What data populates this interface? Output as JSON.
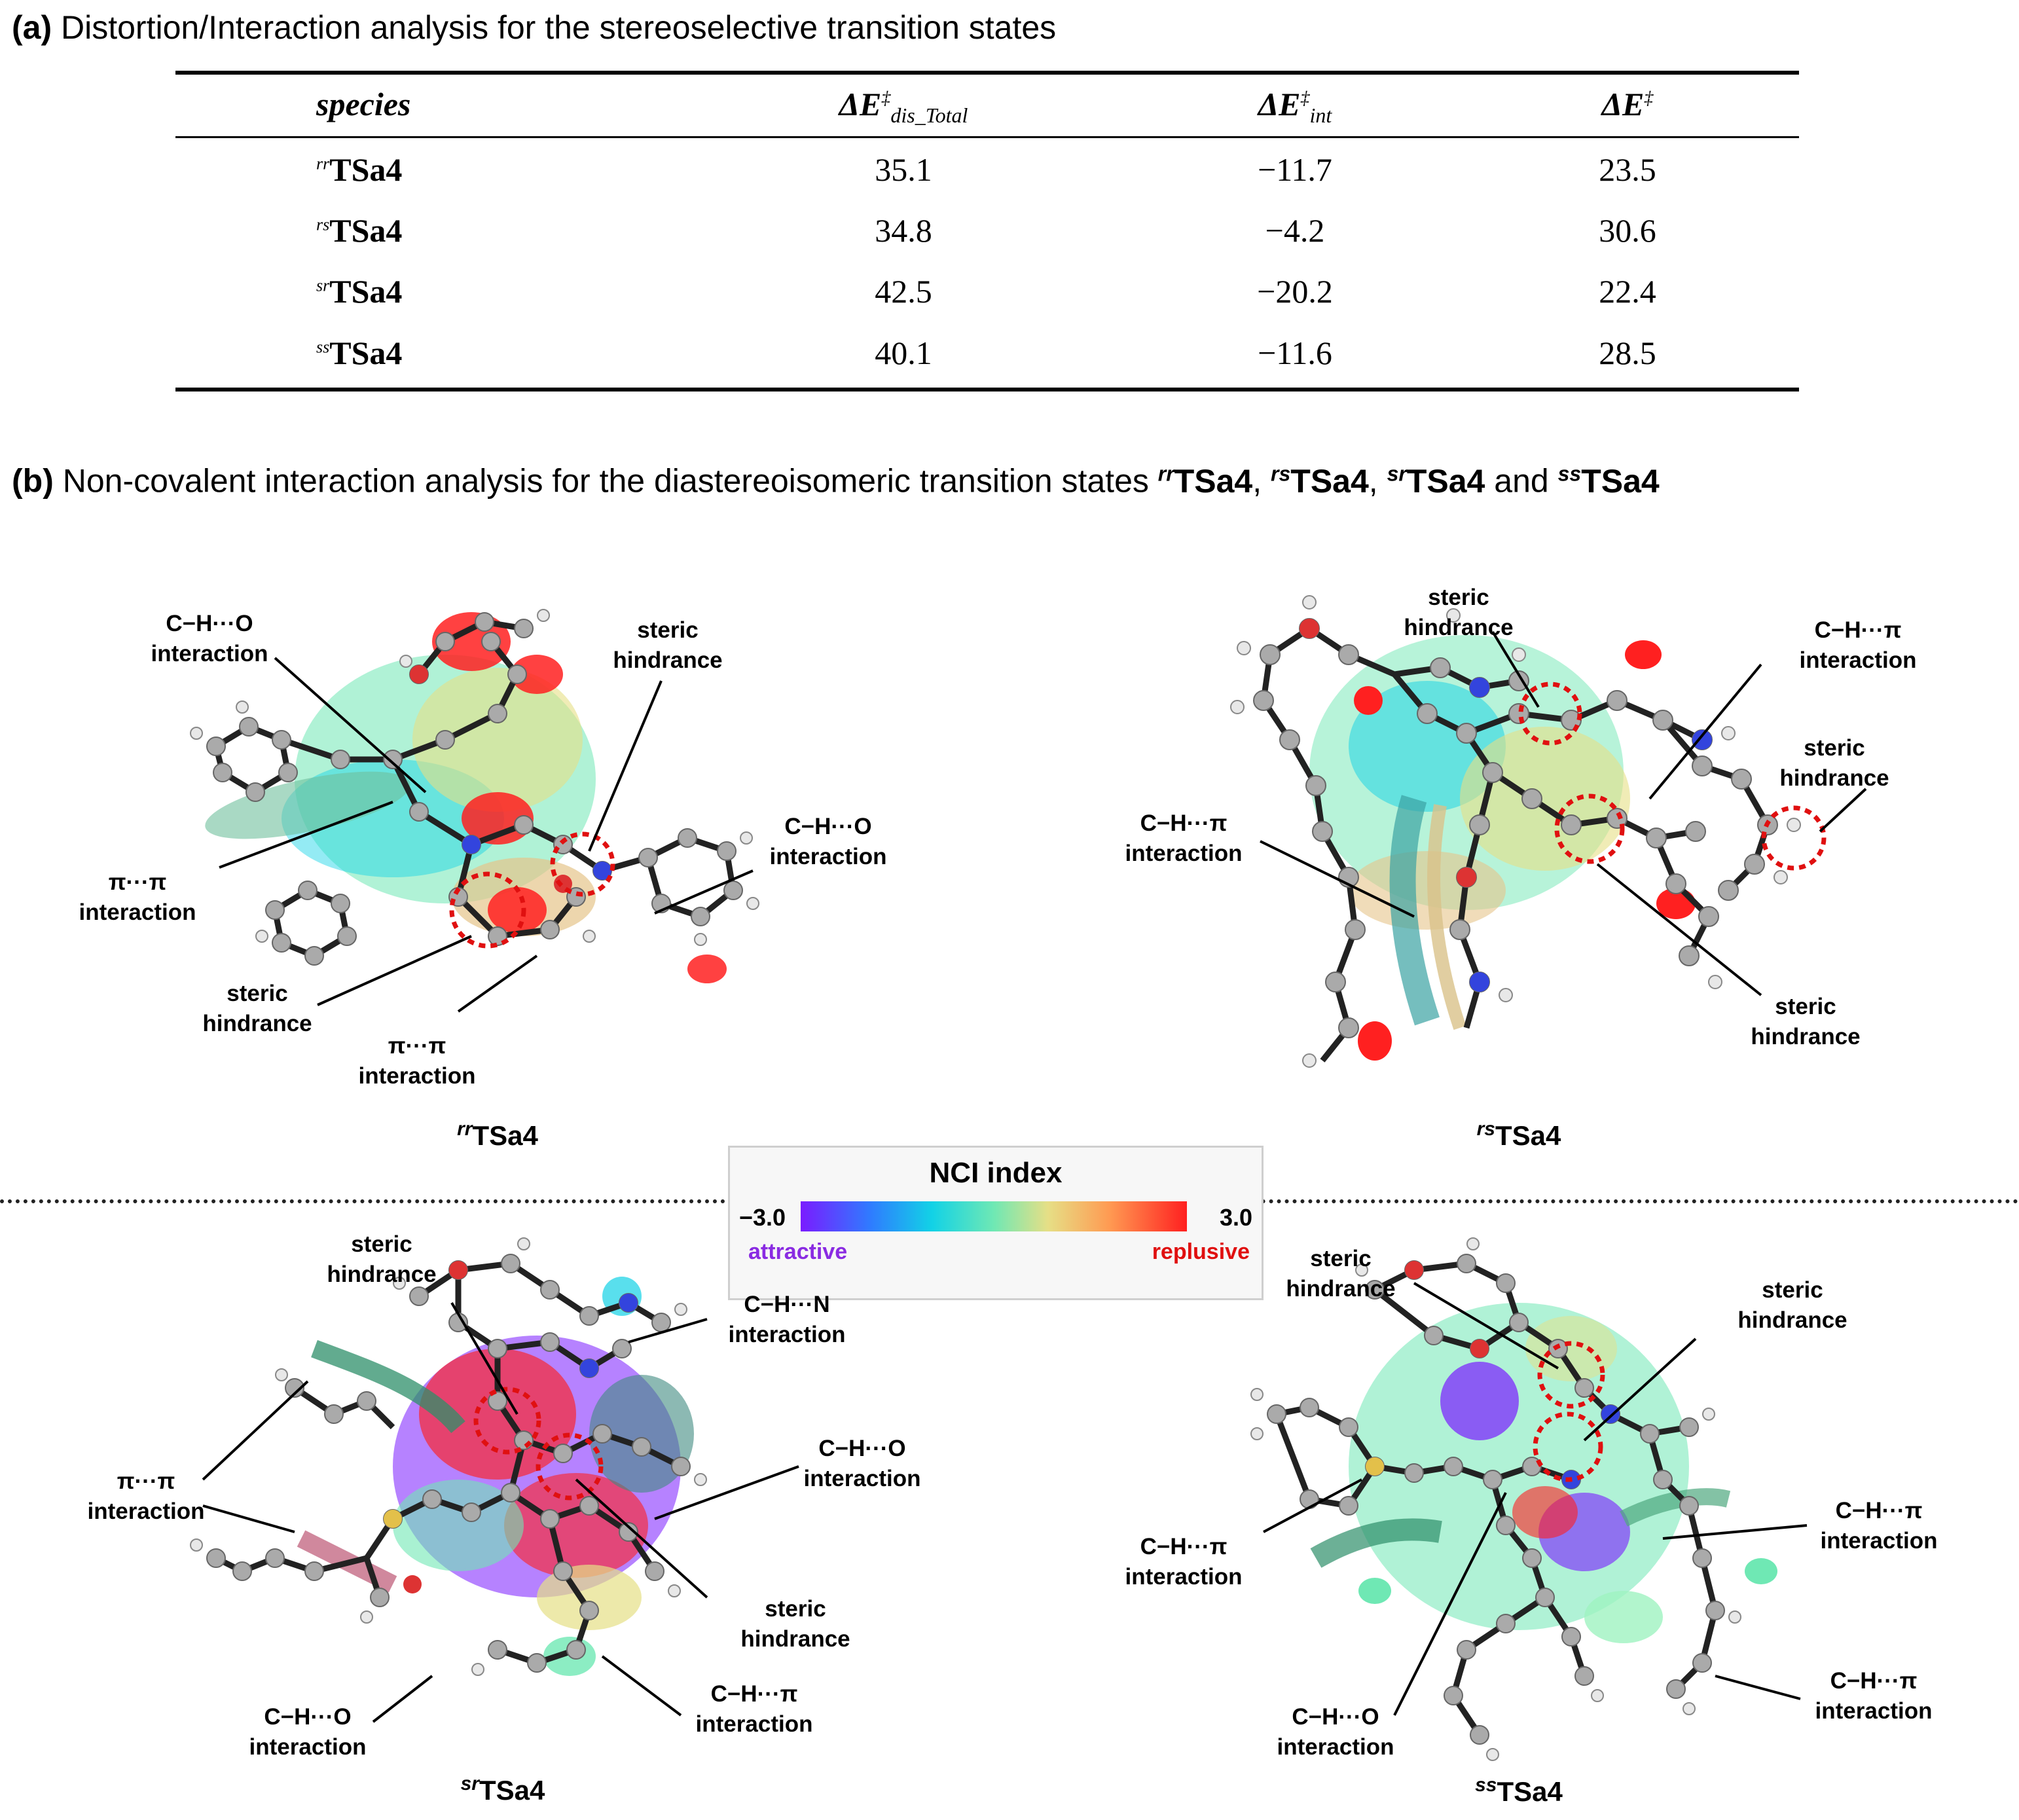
{
  "heading_a": {
    "label": "(a)",
    "text": "Distortion/Interaction analysis for the stereoselective transition states"
  },
  "table": {
    "headers": {
      "species": "species",
      "dis": {
        "base": "ΔE",
        "dagger": "‡",
        "sub": "dis_Total"
      },
      "int": {
        "base": "ΔE",
        "dagger": "‡",
        "sub": "int"
      },
      "total": {
        "base": "ΔE",
        "dagger": "‡"
      }
    },
    "rows": [
      {
        "prefix": "rr",
        "name": "TSa4",
        "dis": "35.1",
        "int": "−11.7",
        "total": "23.5"
      },
      {
        "prefix": "rs",
        "name": "TSa4",
        "dis": "34.8",
        "int": "−4.2",
        "total": "30.6"
      },
      {
        "prefix": "sr",
        "name": "TSa4",
        "dis": "42.5",
        "int": "−20.2",
        "total": "22.4"
      },
      {
        "prefix": "ss",
        "name": "TSa4",
        "dis": "40.1",
        "int": "−11.6",
        "total": "28.5"
      }
    ]
  },
  "heading_b": {
    "label": "(b)",
    "text": "Non-covalent interaction analysis for the diastereoisomeric transition states",
    "sep1": ",",
    "sep2": ",",
    "sep3": "and",
    "names": [
      {
        "prefix": "rr",
        "name": "TSa4"
      },
      {
        "prefix": "rs",
        "name": "TSa4"
      },
      {
        "prefix": "sr",
        "name": "TSa4"
      },
      {
        "prefix": "ss",
        "name": "TSa4"
      }
    ]
  },
  "legend": {
    "title": "NCI index",
    "min": "−3.0",
    "max": "3.0",
    "left_label": "attractive",
    "right_label": "replusive",
    "colors": [
      "#7a1cff",
      "#12d2e6",
      "#6fe8b4",
      "#ff9a52",
      "#ff2020"
    ]
  },
  "panels": {
    "rr": {
      "caption": {
        "prefix": "rr",
        "name": "TSa4"
      },
      "labels": [
        {
          "l1": "C−H···O",
          "l2": "interaction"
        },
        {
          "l1": "steric",
          "l2": "hindrance"
        },
        {
          "l1": "C−H···O",
          "l2": "interaction"
        },
        {
          "l1": "π···π",
          "l2": "interaction"
        },
        {
          "l1": "steric",
          "l2": "hindrance"
        },
        {
          "l1": "π···π",
          "l2": "interaction"
        }
      ]
    },
    "rs": {
      "caption": {
        "prefix": "rs",
        "name": "TSa4"
      },
      "labels": [
        {
          "l1": "steric",
          "l2": "hindrance"
        },
        {
          "l1": "C−H···π",
          "l2": "interaction"
        },
        {
          "l1": "steric",
          "l2": "hindrance"
        },
        {
          "l1": "C−H···π",
          "l2": "interaction"
        },
        {
          "l1": "steric",
          "l2": "hindrance"
        }
      ]
    },
    "sr": {
      "caption": {
        "prefix": "sr",
        "name": "TSa4"
      },
      "labels": [
        {
          "l1": "steric",
          "l2": "hindrance"
        },
        {
          "l1": "C−H···N",
          "l2": "interaction"
        },
        {
          "l1": "π···π",
          "l2": "interaction"
        },
        {
          "l1": "C−H···O",
          "l2": "interaction"
        },
        {
          "l1": "steric",
          "l2": "hindrance"
        },
        {
          "l1": "C−H···π",
          "l2": "interaction"
        },
        {
          "l1": "C−H···O",
          "l2": "interaction"
        }
      ]
    },
    "ss": {
      "caption": {
        "prefix": "ss",
        "name": "TSa4"
      },
      "labels": [
        {
          "l1": "steric",
          "l2": "hindrance"
        },
        {
          "l1": "steric",
          "l2": "hindrance"
        },
        {
          "l1": "C−H···π",
          "l2": "interaction"
        },
        {
          "l1": "C−H···π",
          "l2": "interaction"
        },
        {
          "l1": "C−H···O",
          "l2": "interaction"
        },
        {
          "l1": "C−H···π",
          "l2": "interaction"
        }
      ]
    }
  }
}
